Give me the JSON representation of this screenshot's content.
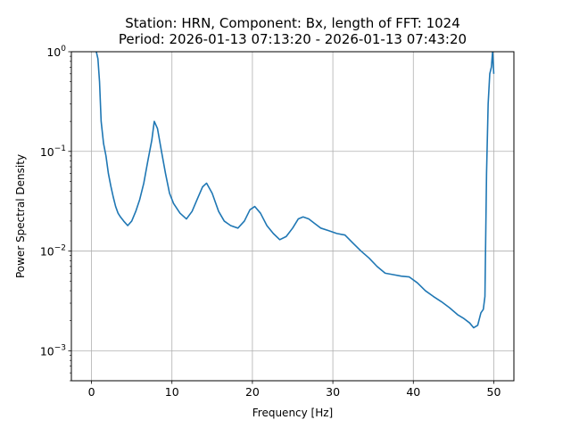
{
  "chart_data": {
    "type": "line",
    "title": "Station: HRN, Component: Bx, length of FFT: 1024",
    "subtitle": "Period: 2026-01-13 07:13:20 - 2026-01-13 07:43:20",
    "xlabel": "Frequency [Hz]",
    "ylabel": "Power Spectral Density",
    "xlim": [
      -2.5,
      52.5
    ],
    "ylim": [
      0.0005,
      1
    ],
    "yscale": "log",
    "grid": true,
    "line_color": "#1f77b4",
    "x_ticks": [
      0,
      10,
      20,
      30,
      40,
      50
    ],
    "x_tick_labels": [
      "0",
      "10",
      "20",
      "30",
      "40",
      "50"
    ],
    "y_ticks": [
      0.001,
      0.01,
      0.1,
      1
    ],
    "y_tick_labels": [
      "10",
      "10",
      "10",
      "10"
    ],
    "y_tick_exponents": [
      "−3",
      "−2",
      "−1",
      "0"
    ],
    "series": [
      {
        "x": [
          0.6,
          0.8,
          1.0,
          1.2,
          1.5,
          1.8,
          2.1,
          2.4,
          2.7,
          3.0,
          3.3,
          3.6,
          4.0,
          4.5,
          5.0,
          5.5,
          6.0,
          6.5,
          7.0,
          7.5,
          7.8,
          8.2,
          8.7,
          9.2,
          9.7,
          10.2,
          11.0,
          11.8,
          12.5,
          13.2,
          13.8,
          14.3,
          15.0,
          15.8,
          16.5,
          17.3,
          18.2,
          19.0,
          19.7,
          20.3,
          21.0,
          21.8,
          22.6,
          23.4,
          24.2,
          25.0,
          25.7,
          26.3,
          27.0,
          27.7,
          28.5,
          29.5,
          30.5,
          31.5,
          32.5,
          33.5,
          34.5,
          35.5,
          36.5,
          37.5,
          38.5,
          39.5,
          40.5,
          41.5,
          42.5,
          43.5,
          44.5,
          45.5,
          46.3,
          47.0,
          47.5,
          48.0,
          48.4,
          48.7,
          48.9,
          49.1,
          49.3,
          49.5,
          49.7,
          49.85,
          50.0
        ],
        "y": [
          1.0,
          0.85,
          0.5,
          0.2,
          0.12,
          0.09,
          0.06,
          0.045,
          0.035,
          0.028,
          0.024,
          0.022,
          0.02,
          0.018,
          0.02,
          0.025,
          0.033,
          0.048,
          0.08,
          0.13,
          0.2,
          0.17,
          0.1,
          0.06,
          0.038,
          0.03,
          0.024,
          0.021,
          0.025,
          0.034,
          0.044,
          0.048,
          0.038,
          0.025,
          0.02,
          0.018,
          0.017,
          0.02,
          0.026,
          0.028,
          0.024,
          0.018,
          0.015,
          0.013,
          0.014,
          0.017,
          0.021,
          0.022,
          0.021,
          0.019,
          0.017,
          0.016,
          0.015,
          0.0145,
          0.012,
          0.01,
          0.0085,
          0.007,
          0.006,
          0.0058,
          0.0056,
          0.0055,
          0.0048,
          0.004,
          0.0035,
          0.0031,
          0.0027,
          0.0023,
          0.0021,
          0.0019,
          0.0017,
          0.0018,
          0.0024,
          0.0026,
          0.0035,
          0.06,
          0.3,
          0.6,
          0.7,
          1.0,
          0.6
        ]
      }
    ]
  }
}
